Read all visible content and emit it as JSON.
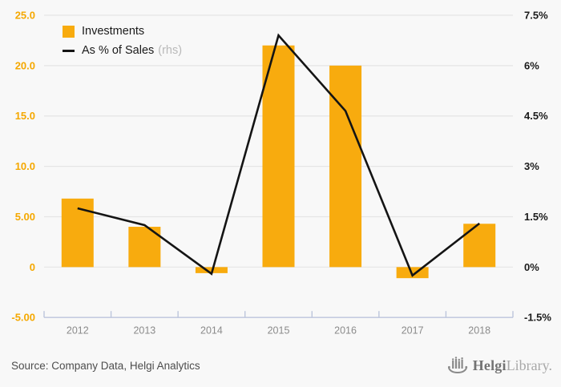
{
  "legend": {
    "investments_label": "Investments",
    "line_label": "As % of Sales",
    "line_label_suffix": "(rhs)"
  },
  "footer": {
    "source": "Source: Company Data, Helgi Analytics",
    "logo_bold": "Helgi",
    "logo_light": "Library."
  },
  "colors": {
    "background": "#f8f8f8",
    "bar": "#f8ab0e",
    "line": "#141414",
    "left_axis_label": "#f5a800",
    "right_axis_label": "#1a1a1a",
    "gridline": "#e5e5e5",
    "axis_line": "#bcc5dc",
    "year_label": "#8b8b8b",
    "legend_suffix": "#b9b9b9"
  },
  "chart_data": {
    "type": "bar",
    "subtype": "bar+line combo",
    "categories": [
      "2012",
      "2013",
      "2014",
      "2015",
      "2016",
      "2017",
      "2018"
    ],
    "series": [
      {
        "name": "Investments",
        "type": "bar",
        "axis": "left",
        "values": [
          6.8,
          4.0,
          -0.6,
          22.0,
          20.0,
          -1.1,
          4.3
        ]
      },
      {
        "name": "As % of Sales (rhs)",
        "type": "line",
        "axis": "right",
        "values": [
          1.75,
          1.25,
          -0.2,
          6.9,
          4.65,
          -0.25,
          1.3
        ]
      }
    ],
    "title": "",
    "xlabel": "",
    "ylabel": "",
    "left_axis": {
      "tick_labels": [
        "25.0",
        "20.0",
        "15.0",
        "10.0",
        "5.00",
        "0",
        "-5.00"
      ],
      "tick_values": [
        25,
        20,
        15,
        10,
        5,
        0,
        -5
      ],
      "range": [
        -5,
        25
      ]
    },
    "right_axis": {
      "tick_labels": [
        "7.5%",
        "6%",
        "4.5%",
        "3%",
        "1.5%",
        "0%",
        "-1.5%"
      ],
      "tick_values": [
        7.5,
        6,
        4.5,
        3,
        1.5,
        0,
        -1.5
      ],
      "range": [
        -1.5,
        7.5
      ]
    },
    "grid": true,
    "legend_position": "top-left"
  }
}
